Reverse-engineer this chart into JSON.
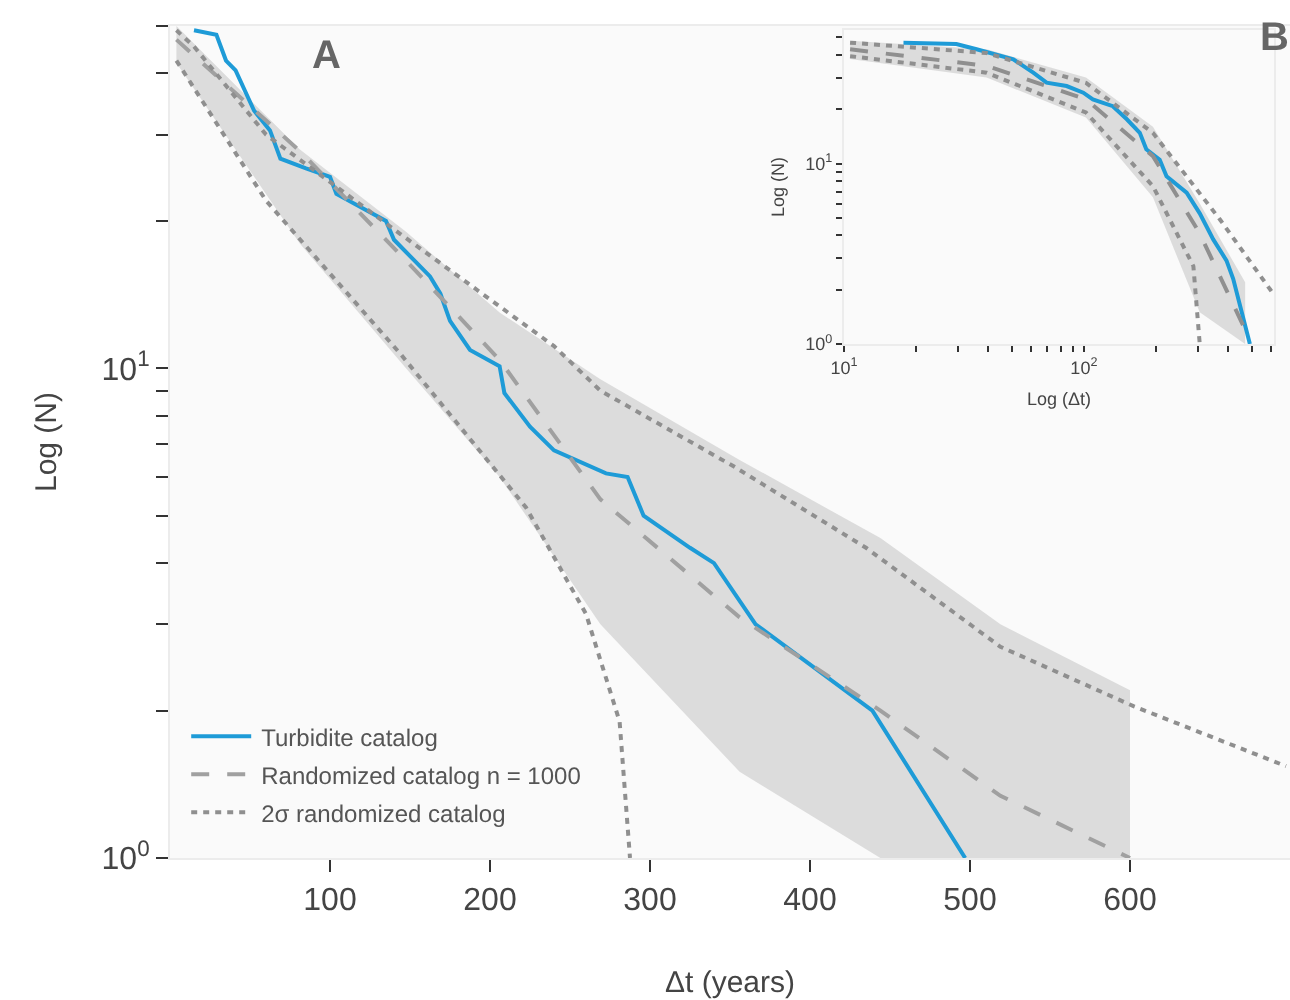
{
  "chart_data": [
    {
      "type": "line",
      "xlabel": "Δt (years)",
      "ylabel": "Log (N)",
      "annotations": [
        "A"
      ],
      "log": "y",
      "xlim": [
        0,
        700
      ],
      "ylim": [
        1,
        50
      ],
      "xticks": [
        100,
        200,
        300,
        400,
        500,
        600
      ],
      "yticks": [
        {
          "value": 1,
          "label": "10$^{0}$"
        },
        {
          "value": 2,
          "label": null
        },
        {
          "value": 3,
          "label": null
        },
        {
          "value": 4,
          "label": null
        },
        {
          "value": 5,
          "label": null
        },
        {
          "value": 6,
          "label": null
        },
        {
          "value": 7,
          "label": null
        },
        {
          "value": 8,
          "label": null
        },
        {
          "value": 9,
          "label": null
        },
        {
          "value": 10,
          "label": "10$^{1}$"
        },
        {
          "value": 20,
          "label": null
        },
        {
          "value": 30,
          "label": null
        },
        {
          "value": 40,
          "label": null
        },
        {
          "value": 50,
          "label": null
        }
      ],
      "grid": false,
      "legend": "bottom left",
      "marker": "none",
      "series": [
        {
          "name": "Turbidite catalog",
          "color": "#1e9bd7",
          "line_style": "solid",
          "x": [
            15,
            29,
            35,
            41,
            52.5,
            62.5,
            69,
            85,
            100,
            104,
            135,
            140,
            162.5,
            169,
            175,
            187.5,
            206,
            209,
            225,
            240,
            272.5,
            286,
            296,
            325,
            340,
            366,
            439,
            497
          ],
          "values": [
            49,
            48,
            42.5,
            40.6,
            33.6,
            30.6,
            26.8,
            25.6,
            24.6,
            22.7,
            20,
            18.3,
            15.4,
            14.2,
            12.5,
            10.9,
            10.1,
            8.9,
            7.6,
            6.8,
            6.1,
            6,
            5,
            4.3,
            4,
            3,
            2,
            1
          ]
        },
        {
          "name": "Randomized catalog n = 1000",
          "color": "#a0a0a0",
          "line_style": "dashed",
          "x": [
            4,
            81,
            147.5,
            206,
            269,
            356,
            444,
            519,
            600
          ],
          "values": [
            46.9,
            27.8,
            16.6,
            10.4,
            5.4,
            3.1,
            2,
            1.34,
            1
          ],
          "lower": [
            42,
            18,
            10,
            6,
            3,
            1.5,
            1,
            1,
            1
          ],
          "upper": [
            50,
            28,
            19,
            13,
            9.5,
            6.5,
            4.5,
            3,
            2.2
          ]
        },
        {
          "name": "2σ randomized catalog",
          "color": "#8f8f8f",
          "line_style": "dotted",
          "x": [
            4,
            15,
            60,
            144,
            240,
            269,
            352.5,
            435,
            519,
            602.5,
            697.5
          ],
          "values": [
            49,
            45.4,
            30,
            18.8,
            11.1,
            9,
            6.3,
            4.3,
            2.7,
            2.04,
            1.54
          ]
        },
        {
          "color": "#8f8f8f",
          "line_style": "dotted",
          "x": [
            4,
            60,
            144,
            222.5,
            260,
            281,
            287.5
          ],
          "values": [
            42.5,
            22,
            10.7,
            5.2,
            3.15,
            1.9,
            1
          ]
        }
      ]
    },
    {
      "type": "line",
      "xlabel": "Log (Δt)",
      "ylabel": "Log (N)",
      "annotations": [
        "B"
      ],
      "log": "xy",
      "xlim": [
        10,
        620
      ],
      "ylim": [
        1,
        55
      ],
      "xticks": [
        {
          "value": 10,
          "label": "10$^{1}$"
        },
        {
          "value": 20,
          "label": null
        },
        {
          "value": 30,
          "label": null
        },
        {
          "value": 40,
          "label": null
        },
        {
          "value": 50,
          "label": null
        },
        {
          "value": 60,
          "label": null
        },
        {
          "value": 70,
          "label": null
        },
        {
          "value": 80,
          "label": null
        },
        {
          "value": 90,
          "label": null
        },
        {
          "value": 100,
          "label": "10$^{2}$"
        },
        {
          "value": 200,
          "label": null
        },
        {
          "value": 300,
          "label": null
        },
        {
          "value": 400,
          "label": null
        },
        {
          "value": 500,
          "label": null
        },
        {
          "value": 600,
          "label": null
        }
      ],
      "yticks": [
        {
          "value": 1,
          "label": "10$^{0}$"
        },
        {
          "value": 2,
          "label": null
        },
        {
          "value": 3,
          "label": null
        },
        {
          "value": 4,
          "label": null
        },
        {
          "value": 5,
          "label": null
        },
        {
          "value": 6,
          "label": null
        },
        {
          "value": 7,
          "label": null
        },
        {
          "value": 8,
          "label": null
        },
        {
          "value": 9,
          "label": null
        },
        {
          "value": 10,
          "label": "10$^{1}$"
        },
        {
          "value": 20,
          "label": null
        },
        {
          "value": 30,
          "label": null
        },
        {
          "value": 40,
          "label": null
        },
        {
          "value": 50,
          "label": null
        }
      ],
      "grid": false,
      "legend": false,
      "marker": "none",
      "series": [
        {
          "color": "#1e9bd7",
          "line_style": "solid",
          "x": [
            17.7,
            29.4,
            35.7,
            50.8,
            61.5,
            69.9,
            84.7,
            99.4,
            109,
            132,
            151,
            171,
            182,
            207,
            221,
            268,
            304,
            346,
            393,
            419,
            492
          ],
          "values": [
            46.8,
            46,
            43,
            37.8,
            31.9,
            28.1,
            26.9,
            24.7,
            22.7,
            20.8,
            17.6,
            14.8,
            12,
            10.5,
            8.5,
            6.9,
            5.3,
            3.8,
            2.9,
            2.3,
            1
          ]
        },
        {
          "color": "#8f8f8f",
          "line_style": "dashed",
          "x": [
            10.6,
            39.3,
            102,
            194,
            304,
            470
          ],
          "values": [
            43,
            34.8,
            22.7,
            11,
            4.1,
            1.2
          ],
          "lower": [
            38,
            30,
            18,
            6.5,
            1.5,
            1
          ],
          "upper": [
            48,
            43,
            30,
            16,
            6,
            2.2
          ]
        },
        {
          "color": "#8f8f8f",
          "line_style": "dotted",
          "x": [
            10.6,
            39.3,
            102,
            194,
            369,
            615
          ],
          "values": [
            46.8,
            41,
            28,
            14.8,
            4.9,
            1.9
          ]
        },
        {
          "color": "#8f8f8f",
          "line_style": "dotted",
          "x": [
            10.6,
            39.3,
            102,
            194,
            286,
            304
          ],
          "values": [
            39.4,
            31.9,
            19.2,
            7.5,
            2.7,
            1
          ]
        }
      ]
    }
  ]
}
